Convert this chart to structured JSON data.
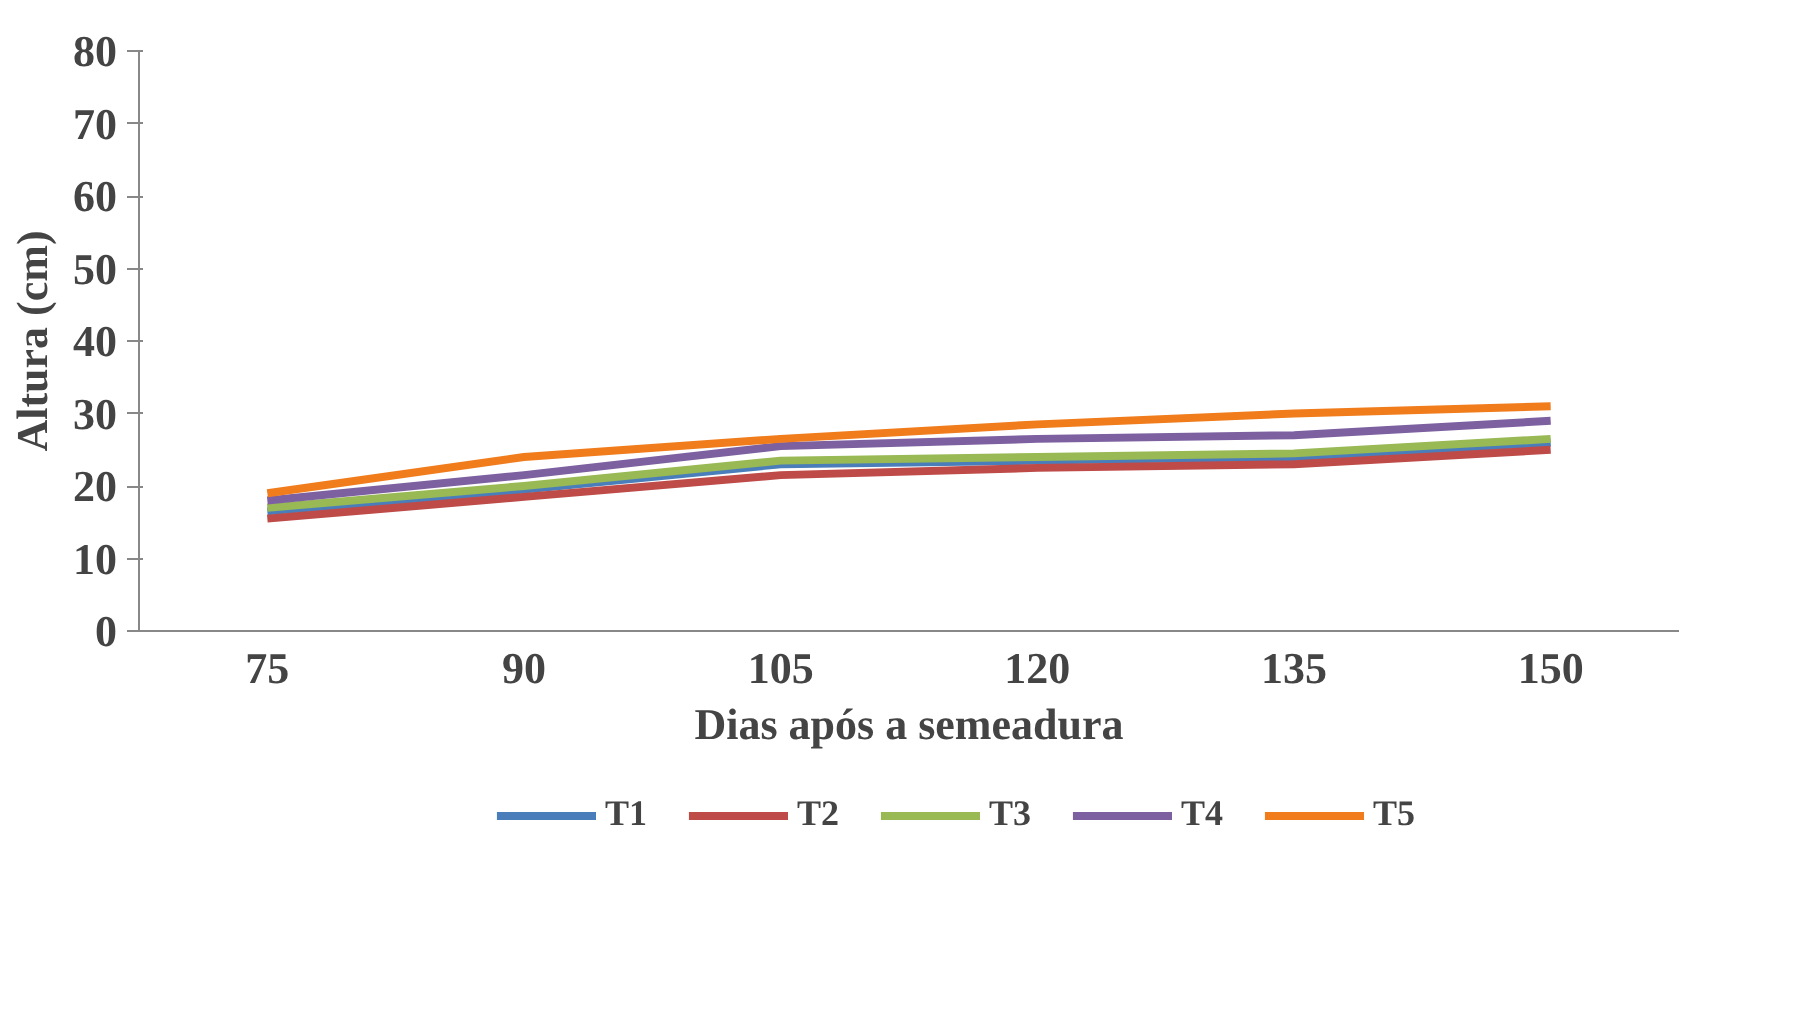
{
  "chart_data": {
    "type": "line",
    "xlabel": "Dias após a semeadura",
    "ylabel": "Altura (cm)",
    "categories": [
      "75",
      "90",
      "105",
      "120",
      "135",
      "150"
    ],
    "ylim": [
      0,
      80
    ],
    "yticks": [
      0,
      10,
      20,
      30,
      40,
      50,
      60,
      70,
      80
    ],
    "grid": false,
    "legend": "bottom",
    "marker": "none",
    "line_style": "solid",
    "series": [
      {
        "name": "T1",
        "color": "#4a7ebb",
        "values": [
          16.5,
          19.5,
          23,
          23.5,
          24,
          26
        ]
      },
      {
        "name": "T2",
        "color": "#be4b48",
        "values": [
          15.5,
          18.5,
          21.5,
          22.5,
          23,
          25
        ]
      },
      {
        "name": "T3",
        "color": "#98b954",
        "values": [
          17,
          20,
          23.5,
          24,
          24.5,
          26.5
        ]
      },
      {
        "name": "T4",
        "color": "#7d60a0",
        "values": [
          18,
          21.5,
          25.5,
          26.5,
          27,
          29
        ]
      },
      {
        "name": "T5",
        "color": "#f07c1c",
        "values": [
          19,
          24,
          26.5,
          28.5,
          30,
          31
        ]
      }
    ]
  }
}
